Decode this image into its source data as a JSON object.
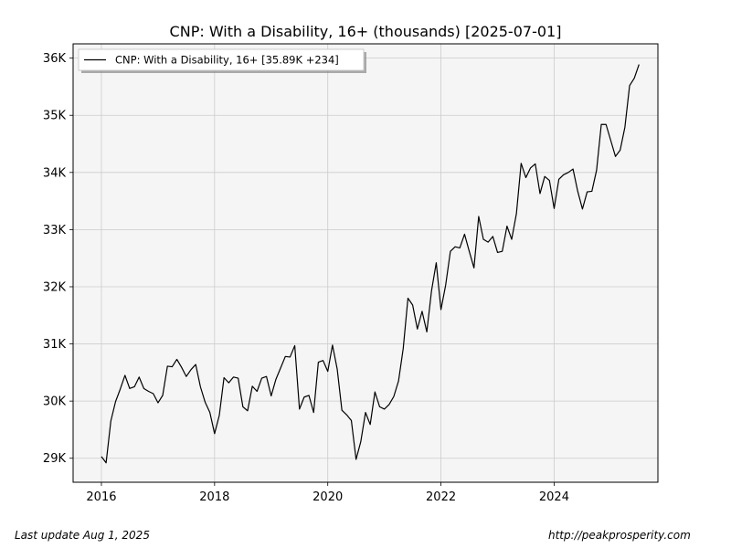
{
  "chart_data": {
    "type": "line",
    "title": "CNP: With a Disability, 16+ (thousands) [2025-07-01]",
    "xlabel": "",
    "ylabel": "",
    "x_ticks": [
      "2016",
      "2018",
      "2020",
      "2022",
      "2024"
    ],
    "y_ticks": [
      "29K",
      "30K",
      "31K",
      "32K",
      "33K",
      "34K",
      "35K",
      "36K"
    ],
    "ylim": [
      28580,
      36250
    ],
    "xlim": [
      "2015-07",
      "2025-11"
    ],
    "grid": true,
    "legend_position": "top-left",
    "series": [
      {
        "name": "CNP: With a Disability, 16+ [35.89K +234]",
        "color": "#000000",
        "x": [
          "2016-01",
          "2016-02",
          "2016-03",
          "2016-04",
          "2016-05",
          "2016-06",
          "2016-07",
          "2016-08",
          "2016-09",
          "2016-10",
          "2016-11",
          "2016-12",
          "2017-01",
          "2017-02",
          "2017-03",
          "2017-04",
          "2017-05",
          "2017-06",
          "2017-07",
          "2017-08",
          "2017-09",
          "2017-10",
          "2017-11",
          "2017-12",
          "2018-01",
          "2018-02",
          "2018-03",
          "2018-04",
          "2018-05",
          "2018-06",
          "2018-07",
          "2018-08",
          "2018-09",
          "2018-10",
          "2018-11",
          "2018-12",
          "2019-01",
          "2019-02",
          "2019-03",
          "2019-04",
          "2019-05",
          "2019-06",
          "2019-07",
          "2019-08",
          "2019-09",
          "2019-10",
          "2019-11",
          "2019-12",
          "2020-01",
          "2020-02",
          "2020-03",
          "2020-04",
          "2020-05",
          "2020-06",
          "2020-07",
          "2020-08",
          "2020-09",
          "2020-10",
          "2020-11",
          "2020-12",
          "2021-01",
          "2021-02",
          "2021-03",
          "2021-04",
          "2021-05",
          "2021-06",
          "2021-07",
          "2021-08",
          "2021-09",
          "2021-10",
          "2021-11",
          "2021-12",
          "2022-01",
          "2022-02",
          "2022-03",
          "2022-04",
          "2022-05",
          "2022-06",
          "2022-07",
          "2022-08",
          "2022-09",
          "2022-10",
          "2022-11",
          "2022-12",
          "2023-01",
          "2023-02",
          "2023-03",
          "2023-04",
          "2023-05",
          "2023-06",
          "2023-07",
          "2023-08",
          "2023-09",
          "2023-10",
          "2023-11",
          "2023-12",
          "2024-01",
          "2024-02",
          "2024-03",
          "2024-04",
          "2024-05",
          "2024-06",
          "2024-07",
          "2024-08",
          "2024-09",
          "2024-10",
          "2024-11",
          "2024-12",
          "2025-01",
          "2025-02",
          "2025-03",
          "2025-04",
          "2025-05",
          "2025-06",
          "2025-07"
        ],
        "values": [
          29030,
          28920,
          29650,
          29990,
          30210,
          30450,
          30220,
          30250,
          30420,
          30220,
          30170,
          30130,
          29970,
          30100,
          30610,
          30600,
          30730,
          30590,
          30430,
          30550,
          30640,
          30250,
          29980,
          29800,
          29430,
          29750,
          30410,
          30320,
          30420,
          30400,
          29900,
          29830,
          30260,
          30170,
          30400,
          30430,
          30090,
          30380,
          30580,
          30780,
          30770,
          30970,
          29860,
          30070,
          30100,
          29800,
          30680,
          30710,
          30520,
          30980,
          30560,
          29840,
          29760,
          29660,
          28980,
          29290,
          29800,
          29590,
          30160,
          29900,
          29860,
          29940,
          30080,
          30350,
          30920,
          31800,
          31680,
          31260,
          31570,
          31210,
          31930,
          32420,
          31600,
          32030,
          32620,
          32700,
          32680,
          32920,
          32620,
          32330,
          33230,
          32830,
          32780,
          32880,
          32600,
          32620,
          33060,
          32830,
          33280,
          34160,
          33910,
          34080,
          34150,
          33630,
          33930,
          33860,
          33370,
          33880,
          33960,
          34000,
          34060,
          33670,
          33360,
          33660,
          33670,
          34040,
          34840,
          34840,
          34560,
          34280,
          34390,
          34790,
          35520,
          35650,
          35890
        ]
      }
    ]
  },
  "footer": {
    "last_update": "Last update Aug  1, 2025",
    "source_url": "http://peakprosperity.com"
  }
}
